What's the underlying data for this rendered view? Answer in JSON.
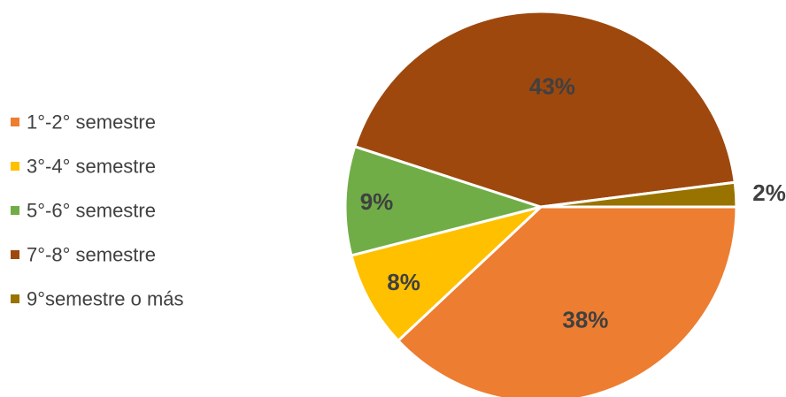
{
  "chart_data": {
    "type": "pie",
    "categories": [
      "1°-2° semestre",
      "3°-4° semestre",
      "5°-6° semestre",
      "7°-8° semestre",
      "9°semestre o más"
    ],
    "values": [
      38,
      8,
      9,
      43,
      2
    ],
    "labels": [
      "38%",
      "8%",
      "9%",
      "43%",
      "2%"
    ],
    "colors": [
      "#ED7D31",
      "#FFC000",
      "#70AD47",
      "#9E480E",
      "#997300"
    ],
    "legend_position": "left",
    "title": ""
  }
}
